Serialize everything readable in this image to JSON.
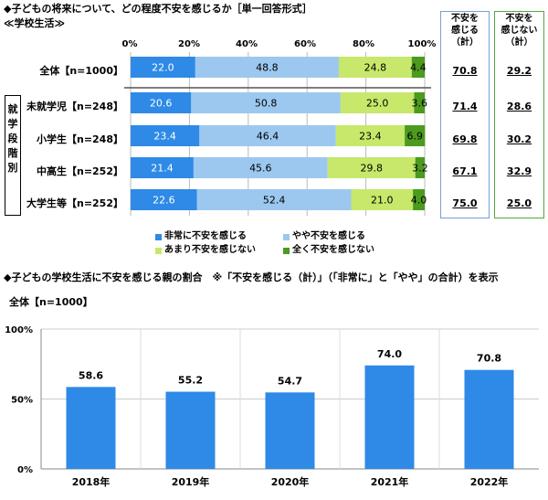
{
  "chart1": {
    "title": "◆子どもの将来について、どの程度不安を感じるか［単一回答形式］",
    "subtitle": "≪学校生活≫",
    "side_label": "就学段階別",
    "ticks": [
      "0%",
      "20%",
      "40%",
      "60%",
      "80%",
      "100%"
    ],
    "col1_header": [
      "不安を",
      "感じる",
      "（計）"
    ],
    "col2_header": [
      "不安を",
      "感じない",
      "（計）"
    ],
    "colors": [
      "#2E8AE6",
      "#9CC8F0",
      "#C7E86A",
      "#4C9A1E"
    ],
    "legend": [
      "非常に不安を感じる",
      "やや不安を感じる",
      "あまり不安を感じない",
      "全く不安を感じない"
    ]
  },
  "chart_data": [
    {
      "type": "bar",
      "orientation": "horizontal",
      "stacked": true,
      "title": "◆子どもの将来について、どの程度不安を感じるか［単一回答形式］",
      "categories": [
        "全体【n=1000】",
        "未就学児【n=248】",
        "小学生【n=248】",
        "中高生【n=252】",
        "大学生等【n=252】"
      ],
      "series": [
        {
          "name": "非常に不安を感じる",
          "values": [
            22.0,
            20.6,
            23.4,
            21.4,
            22.6
          ]
        },
        {
          "name": "やや不安を感じる",
          "values": [
            48.8,
            50.8,
            46.4,
            45.6,
            52.4
          ]
        },
        {
          "name": "あまり不安を感じない",
          "values": [
            24.8,
            25.0,
            23.4,
            29.8,
            21.0
          ]
        },
        {
          "name": "全く不安を感じない",
          "values": [
            4.4,
            3.6,
            6.9,
            3.2,
            4.0
          ]
        }
      ],
      "labels": [
        [
          "22.0",
          "48.8",
          "24.8",
          "4.4"
        ],
        [
          "20.6",
          "50.8",
          "25.0",
          "3.6"
        ],
        [
          "23.4",
          "46.4",
          "23.4",
          "6.9"
        ],
        [
          "21.4",
          "45.6",
          "29.8",
          "3.2"
        ],
        [
          "22.6",
          "52.4",
          "21.0",
          "4.0"
        ]
      ],
      "summary_anxious": [
        "70.8",
        "71.4",
        "69.8",
        "67.1",
        "75.0"
      ],
      "summary_not_anxious": [
        "29.2",
        "28.6",
        "30.2",
        "32.9",
        "25.0"
      ],
      "xlim": [
        0,
        100
      ]
    },
    {
      "type": "bar",
      "title": "◆子どもの学校生活に不安を感じる親の割合　※「不安を感じる（計）」（「非常に」と「やや」の合計）を表示",
      "subtitle": "全体【n=1000】",
      "categories": [
        "2018年",
        "2019年",
        "2020年",
        "2021年",
        "2022年"
      ],
      "values": [
        58.6,
        55.2,
        54.7,
        74.0,
        70.8
      ],
      "labels": [
        "58.6",
        "55.2",
        "54.7",
        "74.0",
        "70.8"
      ],
      "yticks": [
        "0%",
        "50%",
        "100%"
      ],
      "ylim": [
        0,
        100
      ],
      "color": "#2E8AE6"
    }
  ]
}
